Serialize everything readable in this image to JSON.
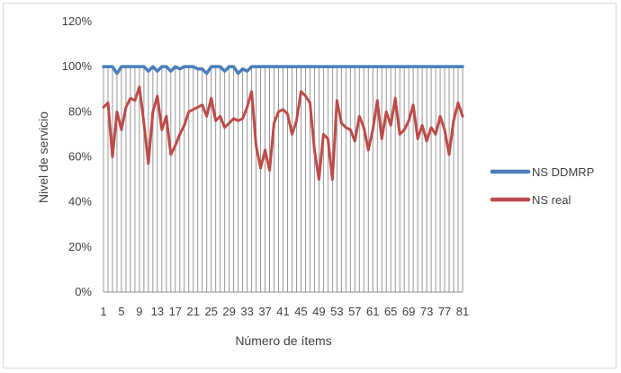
{
  "chart_data": {
    "type": "line",
    "title": "",
    "xlabel": "Número  de ítems",
    "ylabel": "Nivel de servicio",
    "x": [
      1,
      2,
      3,
      4,
      5,
      6,
      7,
      8,
      9,
      10,
      11,
      12,
      13,
      14,
      15,
      16,
      17,
      18,
      19,
      20,
      21,
      22,
      23,
      24,
      25,
      26,
      27,
      28,
      29,
      30,
      31,
      32,
      33,
      34,
      35,
      36,
      37,
      38,
      39,
      40,
      41,
      42,
      43,
      44,
      45,
      46,
      47,
      48,
      49,
      50,
      51,
      52,
      53,
      54,
      55,
      56,
      57,
      58,
      59,
      60,
      61,
      62,
      63,
      64,
      65,
      66,
      67,
      68,
      69,
      70,
      71,
      72,
      73,
      74,
      75,
      76,
      77,
      78,
      79,
      80,
      81
    ],
    "x_tick_labels": [
      "1",
      "5",
      "9",
      "13",
      "17",
      "21",
      "25",
      "29",
      "33",
      "37",
      "41",
      "45",
      "49",
      "53",
      "57",
      "61",
      "65",
      "69",
      "73",
      "77",
      "81"
    ],
    "y_tick_labels": [
      "0%",
      "20%",
      "40%",
      "60%",
      "80%",
      "100%",
      "120%"
    ],
    "ylim": [
      0,
      1.2
    ],
    "vertical_drop_lines": true,
    "legend_position": "right",
    "series": [
      {
        "name": "NS DDMRP",
        "color": "#4a7ebb",
        "values": [
          1.0,
          1.0,
          1.0,
          0.97,
          1.0,
          1.0,
          1.0,
          1.0,
          1.0,
          1.0,
          0.98,
          1.0,
          0.98,
          1.0,
          1.0,
          0.98,
          1.0,
          0.99,
          1.0,
          1.0,
          1.0,
          0.99,
          0.99,
          0.97,
          1.0,
          1.0,
          1.0,
          0.98,
          1.0,
          1.0,
          0.97,
          0.99,
          0.98,
          1.0,
          1.0,
          1.0,
          1.0,
          1.0,
          1.0,
          1.0,
          1.0,
          1.0,
          1.0,
          1.0,
          1.0,
          1.0,
          1.0,
          1.0,
          1.0,
          1.0,
          1.0,
          1.0,
          1.0,
          1.0,
          1.0,
          1.0,
          1.0,
          1.0,
          1.0,
          1.0,
          1.0,
          1.0,
          1.0,
          1.0,
          1.0,
          1.0,
          1.0,
          1.0,
          1.0,
          1.0,
          1.0,
          1.0,
          1.0,
          1.0,
          1.0,
          1.0,
          1.0,
          1.0,
          1.0,
          1.0,
          1.0
        ]
      },
      {
        "name": "NS real",
        "color": "#be4b48",
        "values": [
          0.82,
          0.84,
          0.6,
          0.8,
          0.72,
          0.82,
          0.86,
          0.85,
          0.91,
          0.75,
          0.57,
          0.8,
          0.87,
          0.72,
          0.78,
          0.61,
          0.65,
          0.7,
          0.74,
          0.8,
          0.81,
          0.82,
          0.83,
          0.78,
          0.86,
          0.76,
          0.78,
          0.73,
          0.75,
          0.77,
          0.76,
          0.77,
          0.82,
          0.89,
          0.65,
          0.55,
          0.63,
          0.54,
          0.75,
          0.8,
          0.81,
          0.79,
          0.7,
          0.76,
          0.89,
          0.87,
          0.84,
          0.63,
          0.5,
          0.7,
          0.68,
          0.5,
          0.85,
          0.75,
          0.73,
          0.72,
          0.67,
          0.78,
          0.73,
          0.63,
          0.72,
          0.85,
          0.68,
          0.8,
          0.74,
          0.86,
          0.7,
          0.72,
          0.76,
          0.83,
          0.68,
          0.74,
          0.67,
          0.73,
          0.7,
          0.78,
          0.72,
          0.61,
          0.76,
          0.84,
          0.78
        ]
      }
    ]
  }
}
